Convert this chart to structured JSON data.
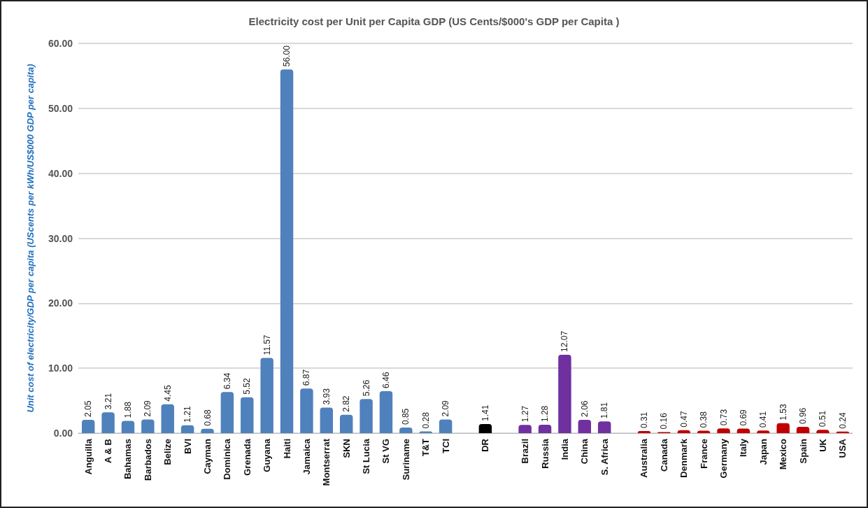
{
  "chart_data": {
    "type": "bar",
    "title": "Electricity cost per Unit per Capita GDP (US Cents/$000's GDP per Capita )",
    "ylabel": "Unit cost of electricity/GDP per capita (UScents per kWh/US$000 GDP per capita)",
    "categories": [
      "Anguilla",
      "A & B",
      "Bahamas",
      "Barbados",
      "Belize",
      "BVI",
      "Cayman",
      "Dominica",
      "Grenada",
      "Guyana",
      "Haiti",
      "Jamaica",
      "Montserrat",
      "SKN",
      "St Lucia",
      "St VG",
      "Suriname",
      "T&T",
      "TCI",
      null,
      "DR",
      null,
      "Brazil",
      "Russia",
      "India",
      "China",
      "S. Africa",
      null,
      "Australia",
      "Canada",
      "Denmark",
      "France",
      "Germany",
      "Italy",
      "Japan",
      "Mexico",
      "Spain",
      "UK",
      "USA"
    ],
    "values": [
      2.05,
      3.21,
      1.88,
      2.09,
      4.45,
      1.21,
      0.68,
      6.34,
      5.52,
      11.57,
      56.0,
      6.87,
      3.93,
      2.82,
      5.26,
      6.46,
      0.85,
      0.28,
      2.09,
      null,
      1.41,
      null,
      1.27,
      1.28,
      12.07,
      2.06,
      1.81,
      null,
      0.31,
      0.16,
      0.47,
      0.38,
      0.73,
      0.69,
      0.41,
      1.53,
      0.96,
      0.51,
      0.24
    ],
    "value_labels": [
      "2.05",
      "3.21",
      "1.88",
      "2.09",
      "4.45",
      "1.21",
      "0.68",
      "6.34",
      "5.52",
      "11.57",
      "56.00",
      "6.87",
      "3.93",
      "2.82",
      "5.26",
      "6.46",
      "0.85",
      "0.28",
      "2.09",
      null,
      "1.41",
      null,
      "1.27",
      "1.28",
      "12.07",
      "2.06",
      "1.81",
      null,
      "0.31",
      "0.16",
      "0.47",
      "0.38",
      "0.73",
      "0.69",
      "0.41",
      "1.53",
      "0.96",
      "0.51",
      "0.24"
    ],
    "colors": [
      "#4f81bd",
      "#4f81bd",
      "#4f81bd",
      "#4f81bd",
      "#4f81bd",
      "#4f81bd",
      "#4f81bd",
      "#4f81bd",
      "#4f81bd",
      "#4f81bd",
      "#4f81bd",
      "#4f81bd",
      "#4f81bd",
      "#4f81bd",
      "#4f81bd",
      "#4f81bd",
      "#4f81bd",
      "#4f81bd",
      "#4f81bd",
      null,
      "#000000",
      null,
      "#7030a0",
      "#7030a0",
      "#7030a0",
      "#7030a0",
      "#7030a0",
      null,
      "#c00000",
      "#c00000",
      "#c00000",
      "#c00000",
      "#c00000",
      "#c00000",
      "#c00000",
      "#c00000",
      "#c00000",
      "#c00000",
      "#c00000"
    ],
    "ylim": [
      0,
      60
    ],
    "yticks": [
      {
        "value": 0,
        "label": "0.00"
      },
      {
        "value": 10,
        "label": "10.00"
      },
      {
        "value": 20,
        "label": "20.00"
      },
      {
        "value": 30,
        "label": "30.00"
      },
      {
        "value": 40,
        "label": "40.00"
      },
      {
        "value": 50,
        "label": "50.00"
      },
      {
        "value": 60,
        "label": "60.00"
      }
    ],
    "grid": "y"
  }
}
